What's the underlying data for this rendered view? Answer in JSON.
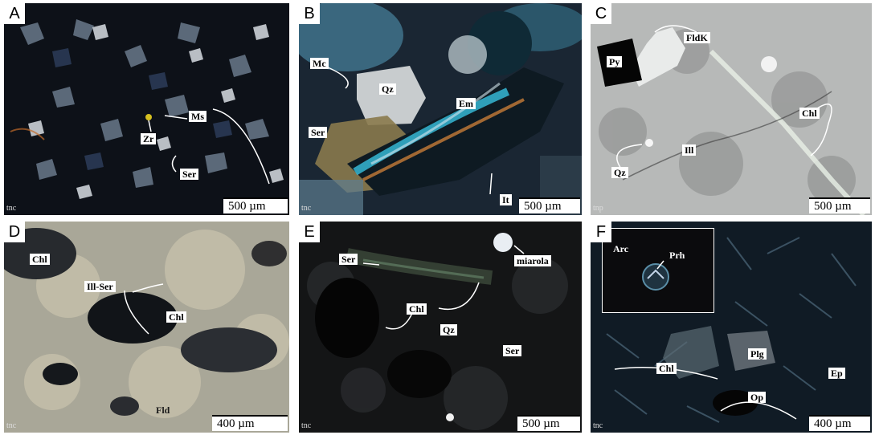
{
  "figure": {
    "panels": [
      {
        "letter": "A",
        "mode": "tnc",
        "scale": "500 µm",
        "labels": {
          "zr": "Zr",
          "ms": "Ms",
          "ser": "Ser"
        }
      },
      {
        "letter": "B",
        "mode": "tnc",
        "scale": "500 µm",
        "labels": {
          "mc": "Mc",
          "qz": "Qz",
          "em": "Em",
          "ser": "Ser",
          "it": "It"
        }
      },
      {
        "letter": "C",
        "mode": "tnp",
        "scale": "500 µm",
        "labels": {
          "py": "Py",
          "fldk": "FldK",
          "chl": "Chl",
          "ill": "Ill",
          "qz": "Qz"
        }
      },
      {
        "letter": "D",
        "mode": "tnc",
        "scale": "400 µm",
        "labels": {
          "chl1": "Chl",
          "illser": "Ill-Ser",
          "chl2": "Chl",
          "fld": "Fld"
        }
      },
      {
        "letter": "E",
        "mode": "tnc",
        "scale": "500 µm",
        "labels": {
          "ser1": "Ser",
          "miarola": "miarola",
          "chl": "Chl",
          "qz": "Qz",
          "ser2": "Ser"
        }
      },
      {
        "letter": "F",
        "mode": "tnc",
        "scale": "400 µm",
        "labels": {
          "arc": "Arc",
          "prh": "Prh",
          "chl": "Chl",
          "plg": "Plg",
          "ep": "Ep",
          "op": "Op"
        }
      }
    ]
  }
}
